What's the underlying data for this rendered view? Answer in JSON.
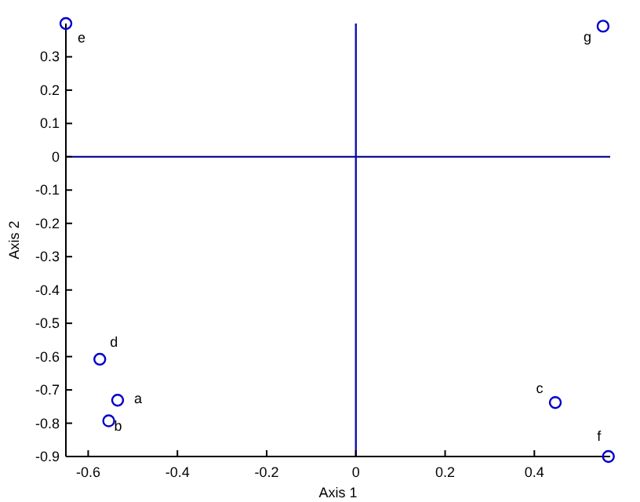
{
  "chart_data": {
    "type": "scatter",
    "xlabel": "Axis 1",
    "ylabel": "Axis 2",
    "x": [
      -0.534,
      -0.554,
      0.447,
      -0.574,
      -0.65,
      0.566,
      0.554
    ],
    "values": [
      -0.731,
      -0.793,
      -0.738,
      -0.608,
      0.4,
      -0.9,
      0.392
    ],
    "color": "#0000cc",
    "marker": "circle",
    "xlim": [
      -0.65,
      0.57
    ],
    "ylim": [
      -0.9,
      0.4
    ],
    "xticks": [
      -0.6,
      -0.4,
      -0.2,
      0,
      0.2,
      0.4
    ],
    "yticks": [
      -0.9,
      -0.8,
      -0.7,
      -0.6,
      -0.5,
      -0.4,
      -0.3,
      -0.2,
      -0.1,
      0,
      0.1,
      0.2,
      0.3
    ],
    "ref_lines": [
      {
        "axis": "x",
        "value": 0,
        "color": "#1010b0"
      },
      {
        "axis": "y",
        "value": 0,
        "color": "#101090"
      }
    ],
    "annotations": [
      {
        "text": "a",
        "x": -0.534,
        "y": -0.731
      },
      {
        "text": "b",
        "x": -0.554,
        "y": -0.793
      },
      {
        "text": "c",
        "x": 0.447,
        "y": -0.738
      },
      {
        "text": "d",
        "x": -0.574,
        "y": -0.608
      },
      {
        "text": "e",
        "x": -0.65,
        "y": 0.4
      },
      {
        "text": "f",
        "x": 0.566,
        "y": -0.9
      },
      {
        "text": "g",
        "x": 0.554,
        "y": 0.392
      }
    ]
  }
}
